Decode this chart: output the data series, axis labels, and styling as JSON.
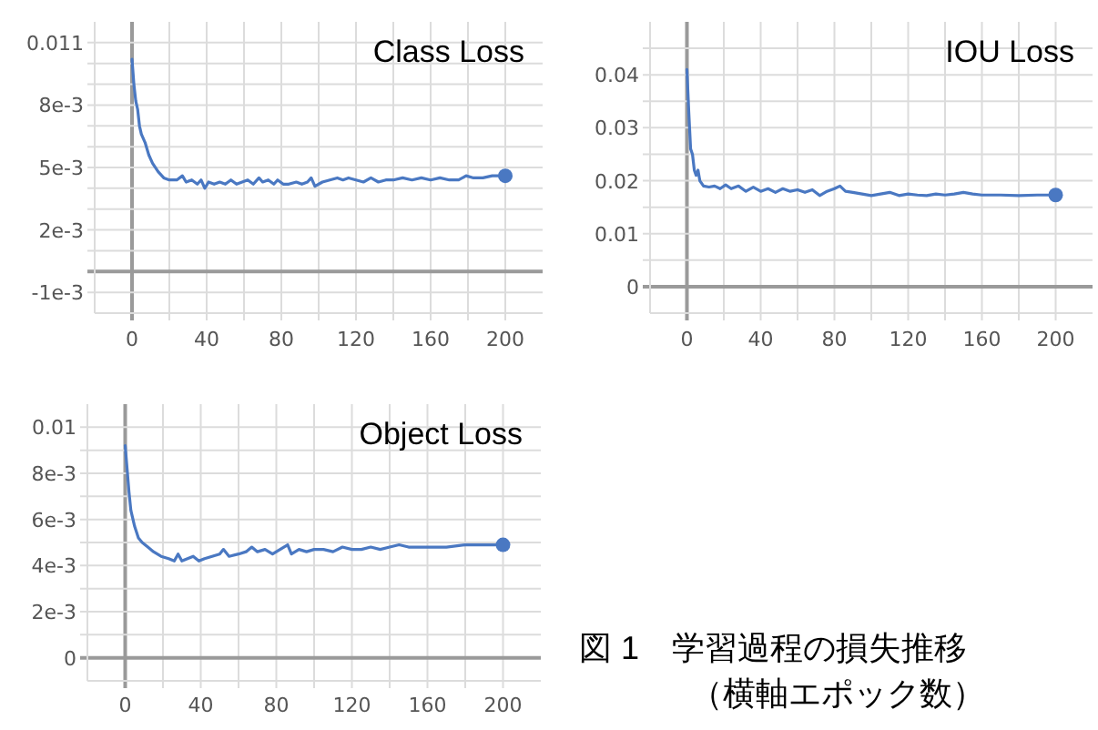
{
  "chart_data": [
    {
      "type": "line",
      "title": "Class Loss",
      "grid": true,
      "xlim": [
        -20,
        220
      ],
      "ylim": [
        -0.002,
        0.012
      ],
      "xticks": [
        0,
        {
          "value": 20,
          "label": null
        },
        40,
        {
          "value": 60,
          "label": null
        },
        80,
        {
          "value": 100,
          "label": null
        },
        120,
        {
          "value": 140,
          "label": null
        },
        160,
        {
          "value": 180,
          "label": null
        },
        200
      ],
      "yticks": [
        {
          "value": -0.001,
          "label": "-1e-3"
        },
        {
          "value": 0,
          "label": null
        },
        {
          "value": 0.001,
          "label": null
        },
        {
          "value": 0.002,
          "label": "2e-3"
        },
        {
          "value": 0.003,
          "label": null
        },
        {
          "value": 0.004,
          "label": null
        },
        {
          "value": 0.005,
          "label": "5e-3"
        },
        {
          "value": 0.006,
          "label": null
        },
        {
          "value": 0.007,
          "label": null
        },
        {
          "value": 0.008,
          "label": "8e-3"
        },
        {
          "value": 0.009,
          "label": null
        },
        {
          "value": 0.01,
          "label": null
        },
        0.011
      ],
      "series": [
        {
          "type": "line",
          "color": "#4a78c2",
          "x": [
            0,
            1,
            2,
            3,
            4,
            5,
            7,
            9,
            11,
            14,
            17,
            20,
            24,
            27,
            29,
            32,
            35,
            37,
            39,
            41,
            44,
            47,
            50,
            53,
            56,
            59,
            62,
            65,
            68,
            70,
            73,
            76,
            78,
            81,
            84,
            88,
            91,
            94,
            96,
            98,
            102,
            106,
            110,
            113,
            116,
            120,
            124,
            128,
            132,
            136,
            140,
            145,
            150,
            155,
            160,
            165,
            170,
            175,
            179,
            183,
            188,
            193,
            197,
            200
          ],
          "values": [
            0.0102,
            0.009,
            0.0082,
            0.0078,
            0.007,
            0.0066,
            0.0062,
            0.0056,
            0.0052,
            0.0048,
            0.0045,
            0.0044,
            0.0044,
            0.0046,
            0.0043,
            0.0044,
            0.0042,
            0.0044,
            0.004,
            0.0043,
            0.0042,
            0.0043,
            0.0042,
            0.0044,
            0.0042,
            0.0043,
            0.0044,
            0.0042,
            0.0045,
            0.0043,
            0.0044,
            0.0042,
            0.0044,
            0.0042,
            0.0042,
            0.0043,
            0.0042,
            0.0043,
            0.0045,
            0.0041,
            0.0043,
            0.0044,
            0.0045,
            0.0044,
            0.0045,
            0.0044,
            0.0043,
            0.0045,
            0.0043,
            0.0044,
            0.0044,
            0.0045,
            0.0044,
            0.0045,
            0.0044,
            0.0045,
            0.0044,
            0.0044,
            0.0046,
            0.0045,
            0.0045,
            0.0046,
            0.0046,
            0.0046
          ]
        },
        {
          "type": "scatter",
          "color": "#4a78c2",
          "x": [
            200
          ],
          "values": [
            0.0046
          ]
        }
      ]
    },
    {
      "type": "line",
      "title": "IOU Loss",
      "grid": true,
      "xlim": [
        -20,
        220
      ],
      "ylim": [
        -0.005,
        0.05
      ],
      "xticks": [
        0,
        {
          "value": 20,
          "label": null
        },
        40,
        {
          "value": 60,
          "label": null
        },
        80,
        {
          "value": 100,
          "label": null
        },
        120,
        {
          "value": 140,
          "label": null
        },
        160,
        {
          "value": 180,
          "label": null
        },
        200
      ],
      "yticks": [
        0,
        {
          "value": 0.005,
          "label": null
        },
        0.01,
        {
          "value": 0.015,
          "label": null
        },
        0.02,
        {
          "value": 0.025,
          "label": null
        },
        0.03,
        {
          "value": 0.035,
          "label": null
        },
        0.04,
        {
          "value": 0.045,
          "label": null
        }
      ],
      "series": [
        {
          "type": "line",
          "color": "#4a78c2",
          "x": [
            0,
            1,
            2,
            3,
            4,
            5,
            6,
            7,
            9,
            12,
            15,
            18,
            21,
            24,
            28,
            32,
            36,
            40,
            44,
            48,
            52,
            56,
            60,
            64,
            68,
            72,
            76,
            80,
            83,
            86,
            90,
            95,
            100,
            105,
            110,
            115,
            120,
            125,
            130,
            135,
            140,
            145,
            150,
            155,
            160,
            170,
            180,
            190,
            200
          ],
          "values": [
            0.041,
            0.033,
            0.026,
            0.025,
            0.022,
            0.021,
            0.022,
            0.02,
            0.019,
            0.0188,
            0.019,
            0.0185,
            0.0192,
            0.0185,
            0.019,
            0.018,
            0.0188,
            0.018,
            0.0185,
            0.0178,
            0.0185,
            0.018,
            0.0183,
            0.0178,
            0.0183,
            0.0172,
            0.018,
            0.0185,
            0.019,
            0.018,
            0.0178,
            0.0175,
            0.0172,
            0.0175,
            0.0178,
            0.0172,
            0.0175,
            0.0173,
            0.0172,
            0.0175,
            0.0173,
            0.0175,
            0.0178,
            0.0175,
            0.0173,
            0.0173,
            0.0172,
            0.0173,
            0.0173
          ]
        },
        {
          "type": "scatter",
          "color": "#4a78c2",
          "x": [
            200
          ],
          "values": [
            0.0173
          ]
        }
      ]
    },
    {
      "type": "line",
      "title": "Object Loss",
      "grid": true,
      "xlim": [
        -20,
        220
      ],
      "ylim": [
        -0.001,
        0.011
      ],
      "xticks": [
        0,
        {
          "value": 20,
          "label": null
        },
        40,
        {
          "value": 60,
          "label": null
        },
        80,
        {
          "value": 100,
          "label": null
        },
        120,
        {
          "value": 140,
          "label": null
        },
        160,
        {
          "value": 180,
          "label": null
        },
        200
      ],
      "yticks": [
        0,
        {
          "value": 0.001,
          "label": null
        },
        {
          "value": 0.002,
          "label": "2e-3"
        },
        {
          "value": 0.003,
          "label": null
        },
        {
          "value": 0.004,
          "label": "4e-3"
        },
        {
          "value": 0.005,
          "label": null
        },
        {
          "value": 0.006,
          "label": "6e-3"
        },
        {
          "value": 0.007,
          "label": null
        },
        {
          "value": 0.008,
          "label": "8e-3"
        },
        {
          "value": 0.009,
          "label": null
        },
        0.01
      ],
      "series": [
        {
          "type": "line",
          "color": "#4a78c2",
          "x": [
            0,
            1,
            2,
            3,
            5,
            7,
            9,
            12,
            15,
            19,
            23,
            26,
            28,
            30,
            33,
            36,
            39,
            42,
            46,
            50,
            52,
            55,
            60,
            64,
            67,
            70,
            74,
            78,
            82,
            86,
            88,
            92,
            96,
            100,
            105,
            110,
            115,
            120,
            125,
            130,
            135,
            140,
            145,
            150,
            155,
            160,
            170,
            180,
            190,
            200
          ],
          "values": [
            0.0092,
            0.0082,
            0.0072,
            0.0064,
            0.0057,
            0.0052,
            0.005,
            0.0048,
            0.0046,
            0.0044,
            0.0043,
            0.0042,
            0.0045,
            0.0042,
            0.0043,
            0.0044,
            0.0042,
            0.0043,
            0.0044,
            0.0045,
            0.0047,
            0.0044,
            0.0045,
            0.0046,
            0.0048,
            0.0046,
            0.0047,
            0.0045,
            0.0047,
            0.0049,
            0.0045,
            0.0047,
            0.0046,
            0.0047,
            0.0047,
            0.0046,
            0.0048,
            0.0047,
            0.0047,
            0.0048,
            0.0047,
            0.0048,
            0.0049,
            0.0048,
            0.0048,
            0.0048,
            0.0048,
            0.0049,
            0.0049,
            0.0049
          ]
        },
        {
          "type": "scatter",
          "color": "#4a78c2",
          "x": [
            200
          ],
          "values": [
            0.0049
          ]
        }
      ]
    },
    {
      "type": "other",
      "title": "図 1　学習過程の損失推移",
      "subtitle": "（横軸エポック数）"
    }
  ]
}
